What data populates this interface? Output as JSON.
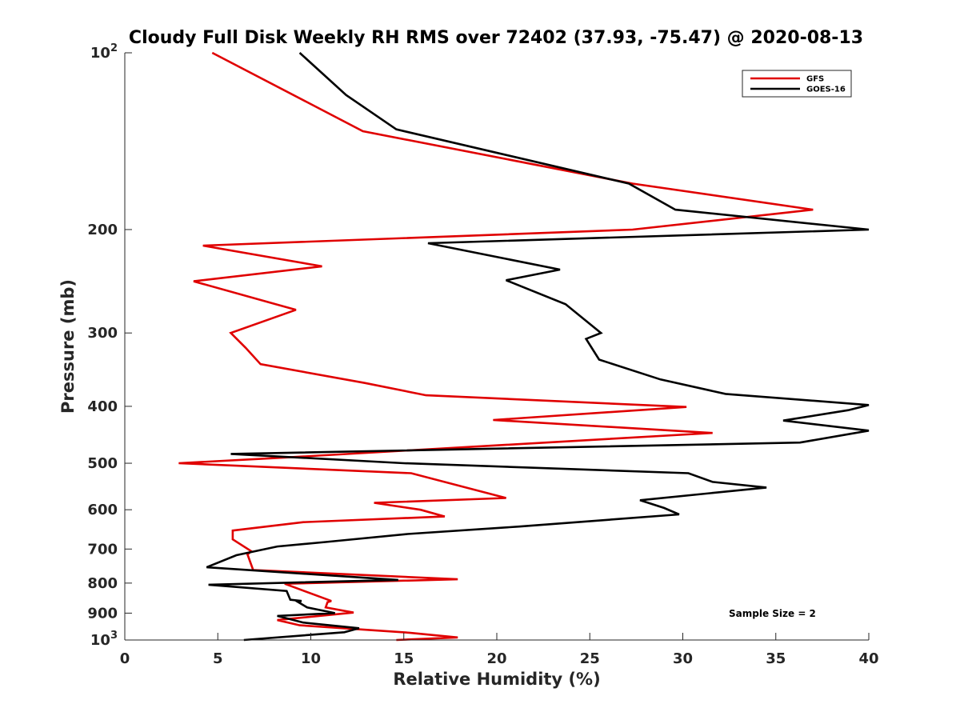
{
  "chart_data": {
    "type": "line",
    "title": "Cloudy Full Disk Weekly RH RMS over 72402 (37.93, -75.47) @ 2020-08-13",
    "xlabel": "Relative Humidity (%)",
    "ylabel": "Pressure (mb)",
    "xlim": [
      0,
      40
    ],
    "ylim": [
      100,
      1000
    ],
    "y_scale": "log",
    "y_reversed": true,
    "xticks": [
      0,
      5,
      10,
      15,
      20,
      25,
      30,
      35,
      40
    ],
    "xtick_labels": [
      "0",
      "5",
      "10",
      "15",
      "20",
      "25",
      "30",
      "35",
      "40"
    ],
    "yticks": [
      {
        "value": 100,
        "base": "10",
        "exp": "2"
      },
      {
        "value": 200,
        "base": "200",
        "exp": ""
      },
      {
        "value": 300,
        "base": "300",
        "exp": ""
      },
      {
        "value": 400,
        "base": "400",
        "exp": ""
      },
      {
        "value": 500,
        "base": "500",
        "exp": ""
      },
      {
        "value": 600,
        "base": "600",
        "exp": ""
      },
      {
        "value": 700,
        "base": "700",
        "exp": ""
      },
      {
        "value": 800,
        "base": "800",
        "exp": ""
      },
      {
        "value": 900,
        "base": "900",
        "exp": ""
      },
      {
        "value": 1000,
        "base": "10",
        "exp": "3"
      }
    ],
    "grid": false,
    "legend_position": "top-right",
    "annotation": "Sample Size = 2",
    "series": [
      {
        "name": "GFS",
        "color": "#e00000",
        "points": [
          [
            4.7,
            100
          ],
          [
            12.8,
            136
          ],
          [
            27.3,
            167
          ],
          [
            37.0,
            185
          ],
          [
            27.3,
            200
          ],
          [
            4.2,
            213
          ],
          [
            10.6,
            231
          ],
          [
            3.7,
            245
          ],
          [
            9.2,
            274
          ],
          [
            5.7,
            300
          ],
          [
            6.5,
            318
          ],
          [
            7.3,
            339
          ],
          [
            12.9,
            365
          ],
          [
            16.2,
            383
          ],
          [
            30.2,
            401
          ],
          [
            19.8,
            422
          ],
          [
            31.6,
            444
          ],
          [
            8.1,
            490
          ],
          [
            2.9,
            500
          ],
          [
            15.4,
            520
          ],
          [
            20.5,
            573
          ],
          [
            13.4,
            584
          ],
          [
            15.9,
            600
          ],
          [
            17.2,
            616
          ],
          [
            9.6,
            630
          ],
          [
            5.8,
            651
          ],
          [
            5.8,
            674
          ],
          [
            6.8,
            706
          ],
          [
            6.6,
            715
          ],
          [
            6.9,
            760
          ],
          [
            17.9,
            788
          ],
          [
            8.6,
            802
          ],
          [
            11.1,
            858
          ],
          [
            10.9,
            862
          ],
          [
            10.8,
            880
          ],
          [
            12.3,
            898
          ],
          [
            8.2,
            925
          ],
          [
            9.4,
            944
          ],
          [
            15.3,
            972
          ],
          [
            17.9,
            990
          ],
          [
            14.6,
            1000
          ]
        ]
      },
      {
        "name": "GOES-16",
        "color": "#000000",
        "points": [
          [
            9.4,
            100
          ],
          [
            11.9,
            118
          ],
          [
            14.6,
            135
          ],
          [
            27.1,
            167
          ],
          [
            29.6,
            185
          ],
          [
            40.0,
            200
          ],
          [
            16.3,
            211
          ],
          [
            23.4,
            234
          ],
          [
            20.5,
            244
          ],
          [
            23.7,
            268
          ],
          [
            25.6,
            300
          ],
          [
            24.8,
            307
          ],
          [
            25.5,
            333
          ],
          [
            28.8,
            360
          ],
          [
            32.3,
            381
          ],
          [
            40.0,
            398
          ],
          [
            38.9,
            406
          ],
          [
            35.4,
            423
          ],
          [
            40.0,
            440
          ],
          [
            36.3,
            461
          ],
          [
            5.7,
            482
          ],
          [
            15.0,
            500
          ],
          [
            30.3,
            520
          ],
          [
            31.6,
            538
          ],
          [
            34.5,
            550
          ],
          [
            27.7,
            578
          ],
          [
            29.0,
            596
          ],
          [
            29.8,
            611
          ],
          [
            21.2,
            641
          ],
          [
            15.2,
            660
          ],
          [
            10.8,
            681
          ],
          [
            8.2,
            693
          ],
          [
            6.0,
            717
          ],
          [
            4.4,
            752
          ],
          [
            14.7,
            790
          ],
          [
            4.5,
            805
          ],
          [
            8.7,
            825
          ],
          [
            8.9,
            854
          ],
          [
            9.5,
            858
          ],
          [
            9.3,
            861
          ],
          [
            9.8,
            880
          ],
          [
            11.3,
            900
          ],
          [
            8.2,
            910
          ],
          [
            9.6,
            934
          ],
          [
            12.6,
            955
          ],
          [
            11.8,
            970
          ],
          [
            6.4,
            1000
          ]
        ]
      }
    ]
  }
}
